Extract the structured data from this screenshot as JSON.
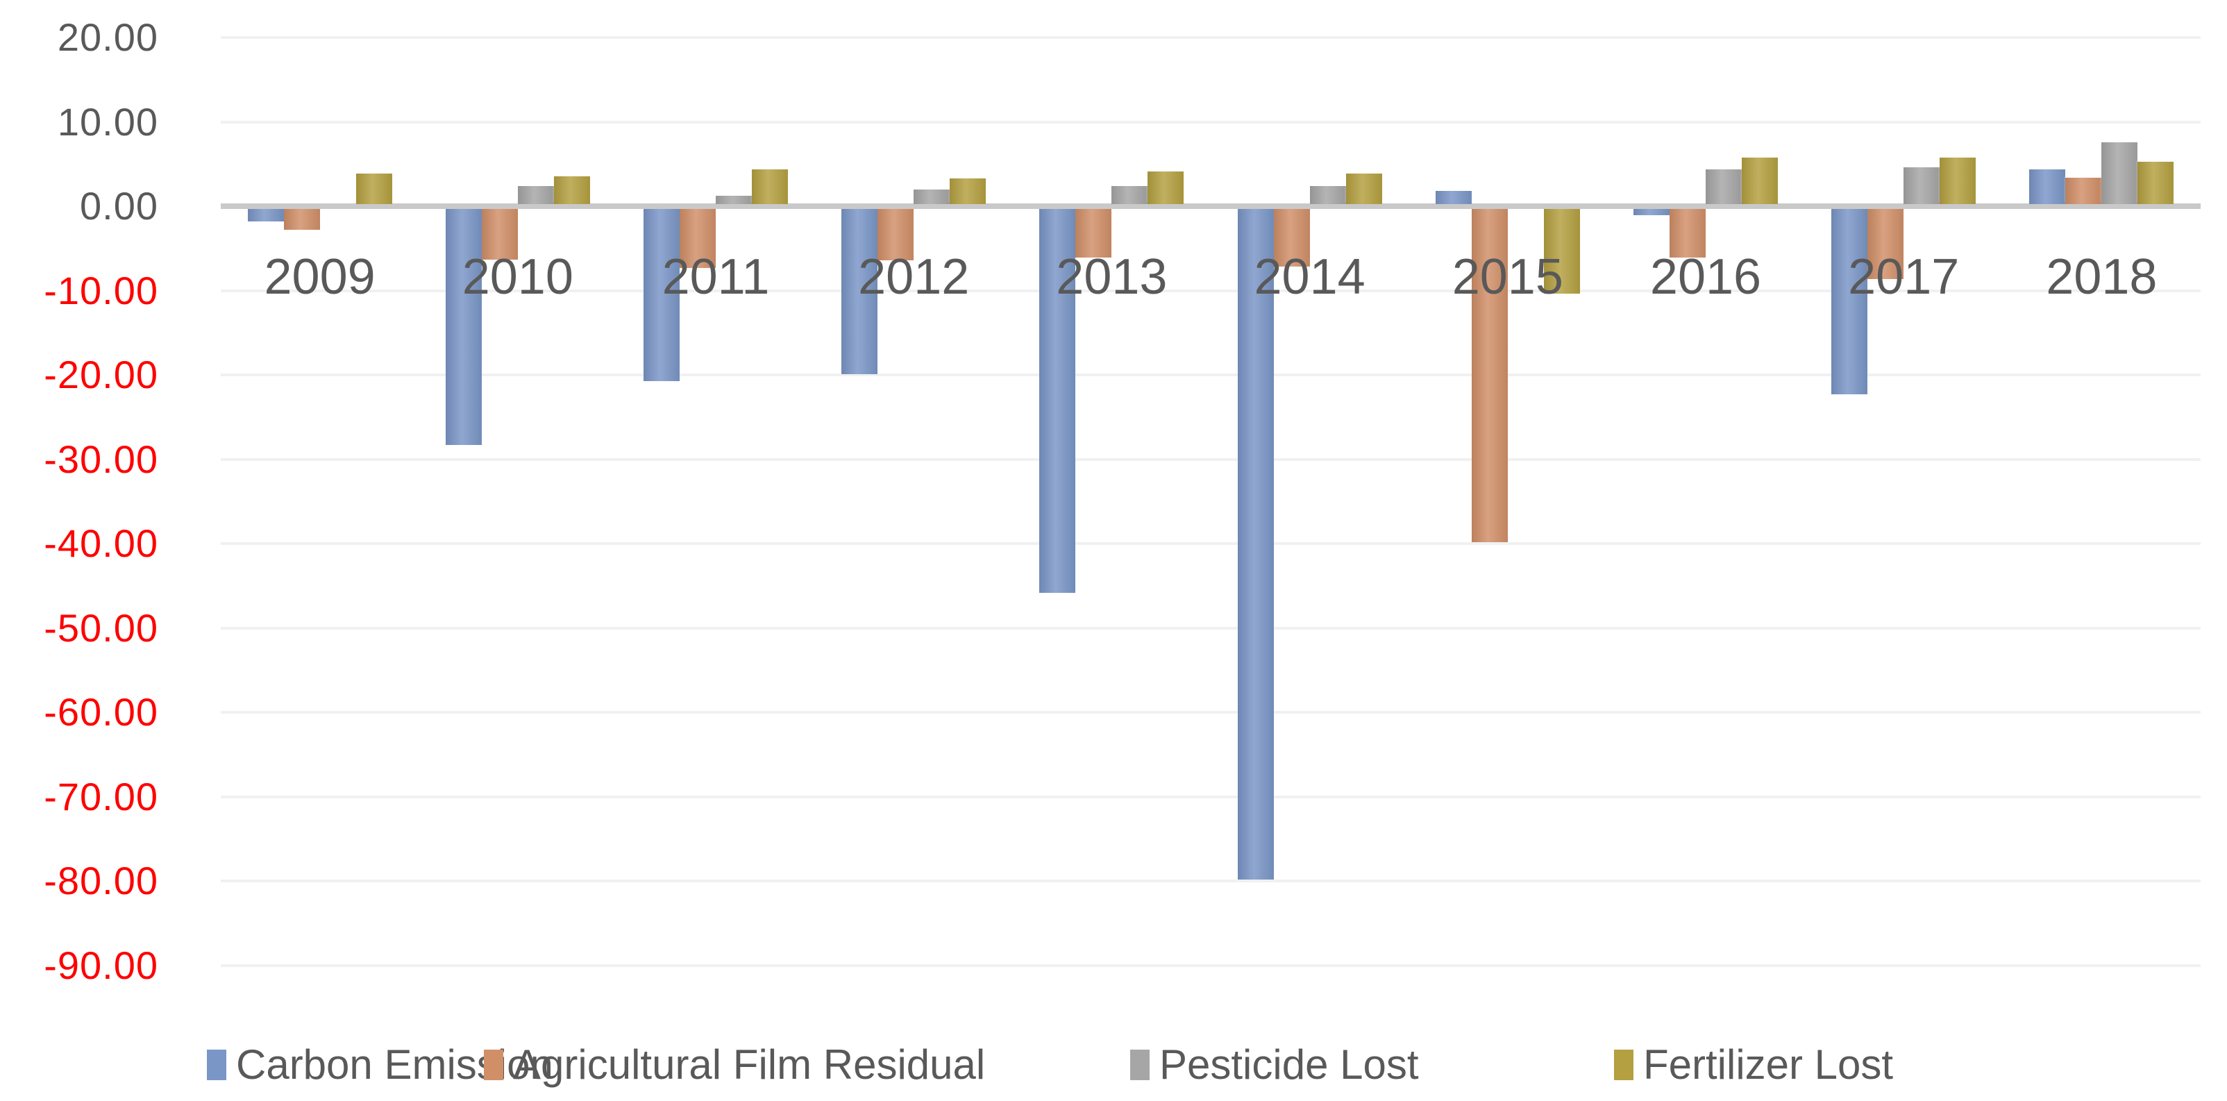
{
  "chart_data": {
    "type": "bar",
    "title": "",
    "xlabel": "",
    "ylabel": "",
    "categories": [
      "2009",
      "2010",
      "2011",
      "2012",
      "2013",
      "2014",
      "2015",
      "2016",
      "2017",
      "2018"
    ],
    "series": [
      {
        "name": "Carbon Emission",
        "color": "#7a96c7",
        "values": [
          -1.5,
          -28.0,
          -20.4,
          -19.6,
          -45.5,
          -79.5,
          1.8,
          -0.7,
          -22.0,
          4.4
        ]
      },
      {
        "name": "Agricultural Film Residual",
        "color": "#d18f68",
        "values": [
          -2.5,
          -6.0,
          -7.0,
          -6.1,
          -5.8,
          -6.8,
          -39.5,
          -5.8,
          -8.3,
          3.4
        ]
      },
      {
        "name": "Pesticide Lost",
        "color": "#a6a6a6",
        "values": [
          0.0,
          2.4,
          1.2,
          2.0,
          2.4,
          2.4,
          0.0,
          4.4,
          4.6,
          7.6
        ]
      },
      {
        "name": "Fertilizer Lost",
        "color": "#b4a040",
        "values": [
          3.9,
          3.5,
          4.4,
          3.3,
          4.1,
          3.9,
          -10.0,
          5.8,
          5.8,
          5.3
        ]
      }
    ],
    "ylim": [
      -90,
      20
    ],
    "ytick_step": 10,
    "y_ticks": [
      {
        "label": "20.00",
        "value": 20
      },
      {
        "label": "10.00",
        "value": 10
      },
      {
        "label": "0.00",
        "value": 0
      },
      {
        "label": "-10.00",
        "value": -10
      },
      {
        "label": "-20.00",
        "value": -20
      },
      {
        "label": "-30.00",
        "value": -30
      },
      {
        "label": "-40.00",
        "value": -40
      },
      {
        "label": "-50.00",
        "value": -50
      },
      {
        "label": "-60.00",
        "value": -60
      },
      {
        "label": "-70.00",
        "value": -70
      },
      {
        "label": "-80.00",
        "value": -80
      },
      {
        "label": "-90.00",
        "value": -90
      }
    ],
    "grid": true,
    "legend_position": "bottom",
    "colors": {
      "tick_positive": "#595959",
      "tick_negative": "#ff0000",
      "category_label": "#595959",
      "axis_line": "#c9c9c9",
      "gridline": "#f1f1f1",
      "legend_text": "#595959"
    }
  }
}
